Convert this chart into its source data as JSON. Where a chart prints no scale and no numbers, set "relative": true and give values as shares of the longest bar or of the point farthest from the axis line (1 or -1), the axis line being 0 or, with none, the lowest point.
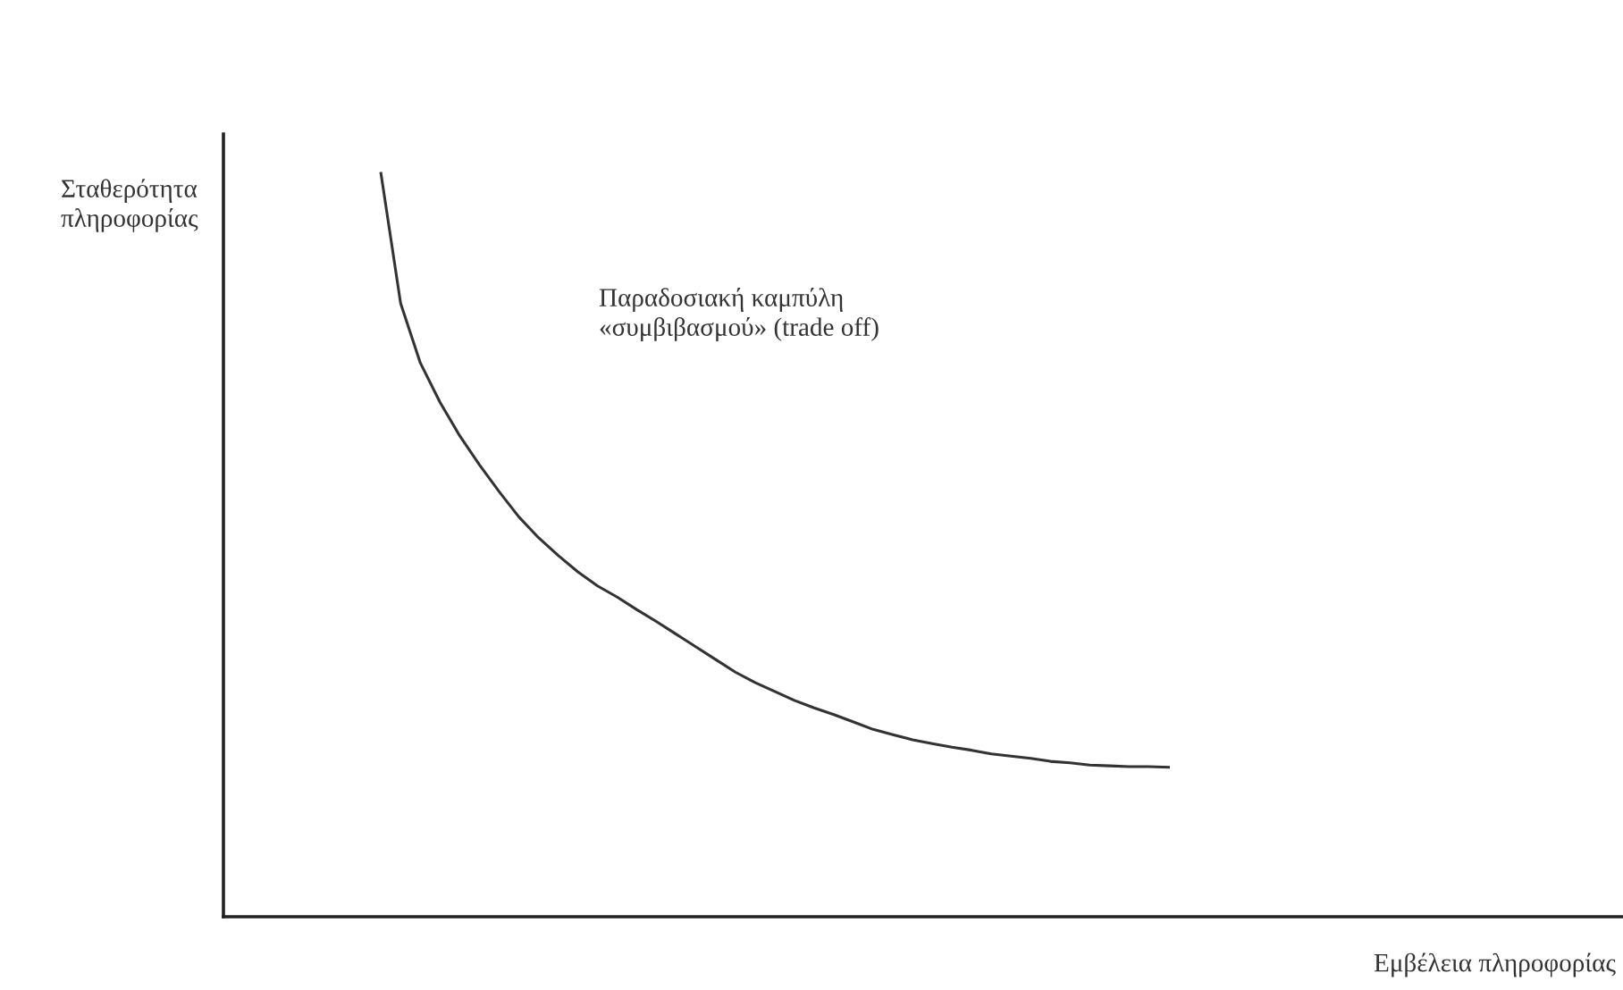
{
  "chart_data": {
    "type": "line",
    "relative": true,
    "ylabel": "Σταθερότητα\nπληροφορίας",
    "xlabel": "Εμβέλεια πληροφορίας",
    "annotations": [
      "Παραδοσιακή καμπύλη\n«συμβιβασμού» (trade off)"
    ],
    "categories": [
      null,
      null,
      null,
      null,
      null,
      null,
      null,
      null,
      null,
      null,
      null,
      null,
      null,
      null,
      null,
      null,
      null,
      null,
      null,
      null,
      null,
      null,
      null,
      null,
      null,
      null,
      null,
      null,
      null,
      null,
      null,
      null,
      null,
      null,
      null,
      null,
      null,
      null,
      null,
      null,
      null,
      null,
      null,
      null,
      null,
      null,
      null,
      null,
      null,
      null,
      null,
      null,
      null,
      null,
      null,
      null,
      null,
      null,
      null,
      null,
      null,
      null,
      null,
      null,
      null,
      null,
      null,
      null,
      null,
      null,
      null,
      null
    ],
    "series": [
      {
        "color": "#333333",
        "values": [
          null,
          null,
          null,
          null,
          null,
          null,
          null,
          null,
          1.0,
          0.825,
          0.745,
          0.692,
          0.647,
          0.608,
          0.572,
          0.538,
          0.51,
          0.486,
          0.464,
          0.445,
          0.43,
          0.413,
          0.397,
          0.38,
          0.363,
          0.346,
          0.329,
          0.315,
          0.303,
          0.291,
          0.281,
          0.272,
          0.262,
          0.252,
          0.245,
          0.238,
          0.233,
          0.228,
          0.224,
          0.219,
          0.216,
          0.213,
          0.209,
          0.207,
          0.204,
          0.203,
          0.202,
          0.202,
          0.201,
          null,
          null,
          null,
          null,
          null,
          null,
          null,
          null,
          null,
          null,
          null,
          null,
          null,
          null,
          null,
          null,
          null,
          null,
          null,
          null,
          null,
          null,
          null
        ]
      }
    ],
    "grid": false,
    "legend": false,
    "marker": "none",
    "line_style": "solid"
  }
}
